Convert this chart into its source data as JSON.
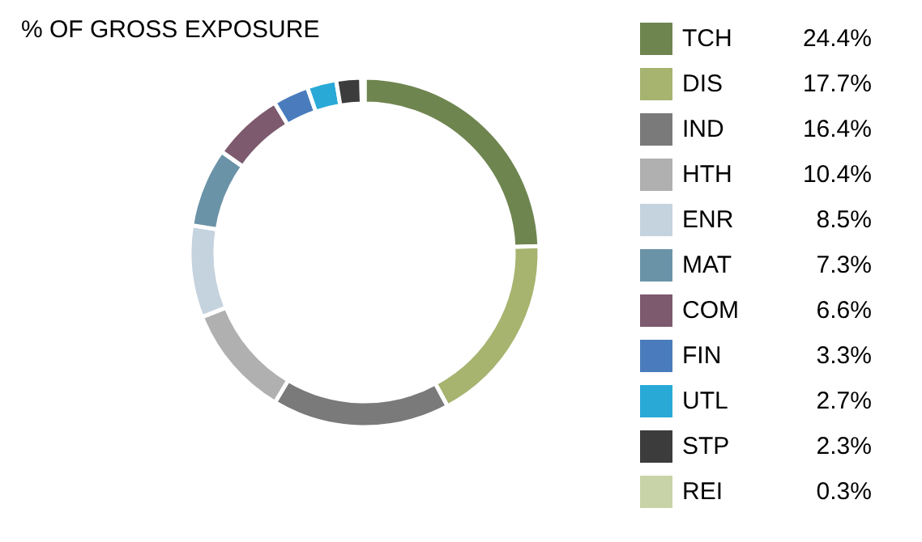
{
  "chart_data": {
    "type": "donut",
    "title": "% OF GROSS EXPOSURE",
    "categories": [
      "TCH",
      "DIS",
      "IND",
      "HTH",
      "ENR",
      "MAT",
      "COM",
      "FIN",
      "UTL",
      "STP",
      "REI"
    ],
    "values": [
      24.4,
      17.7,
      16.4,
      10.4,
      8.5,
      7.3,
      6.6,
      3.3,
      2.7,
      2.3,
      0.3
    ],
    "value_labels": [
      "24.4%",
      "17.7%",
      "16.4%",
      "10.4%",
      "8.5%",
      "7.3%",
      "6.6%",
      "3.3%",
      "2.7%",
      "2.3%",
      "0.3%"
    ],
    "colors": [
      "#6f8550",
      "#a6b46f",
      "#7a7a7a",
      "#b0b0b0",
      "#c5d3df",
      "#6b93a8",
      "#7d5a6e",
      "#4a7cbd",
      "#29a9d6",
      "#3c3c3c",
      "#c9d3a8"
    ],
    "legend": "right"
  }
}
